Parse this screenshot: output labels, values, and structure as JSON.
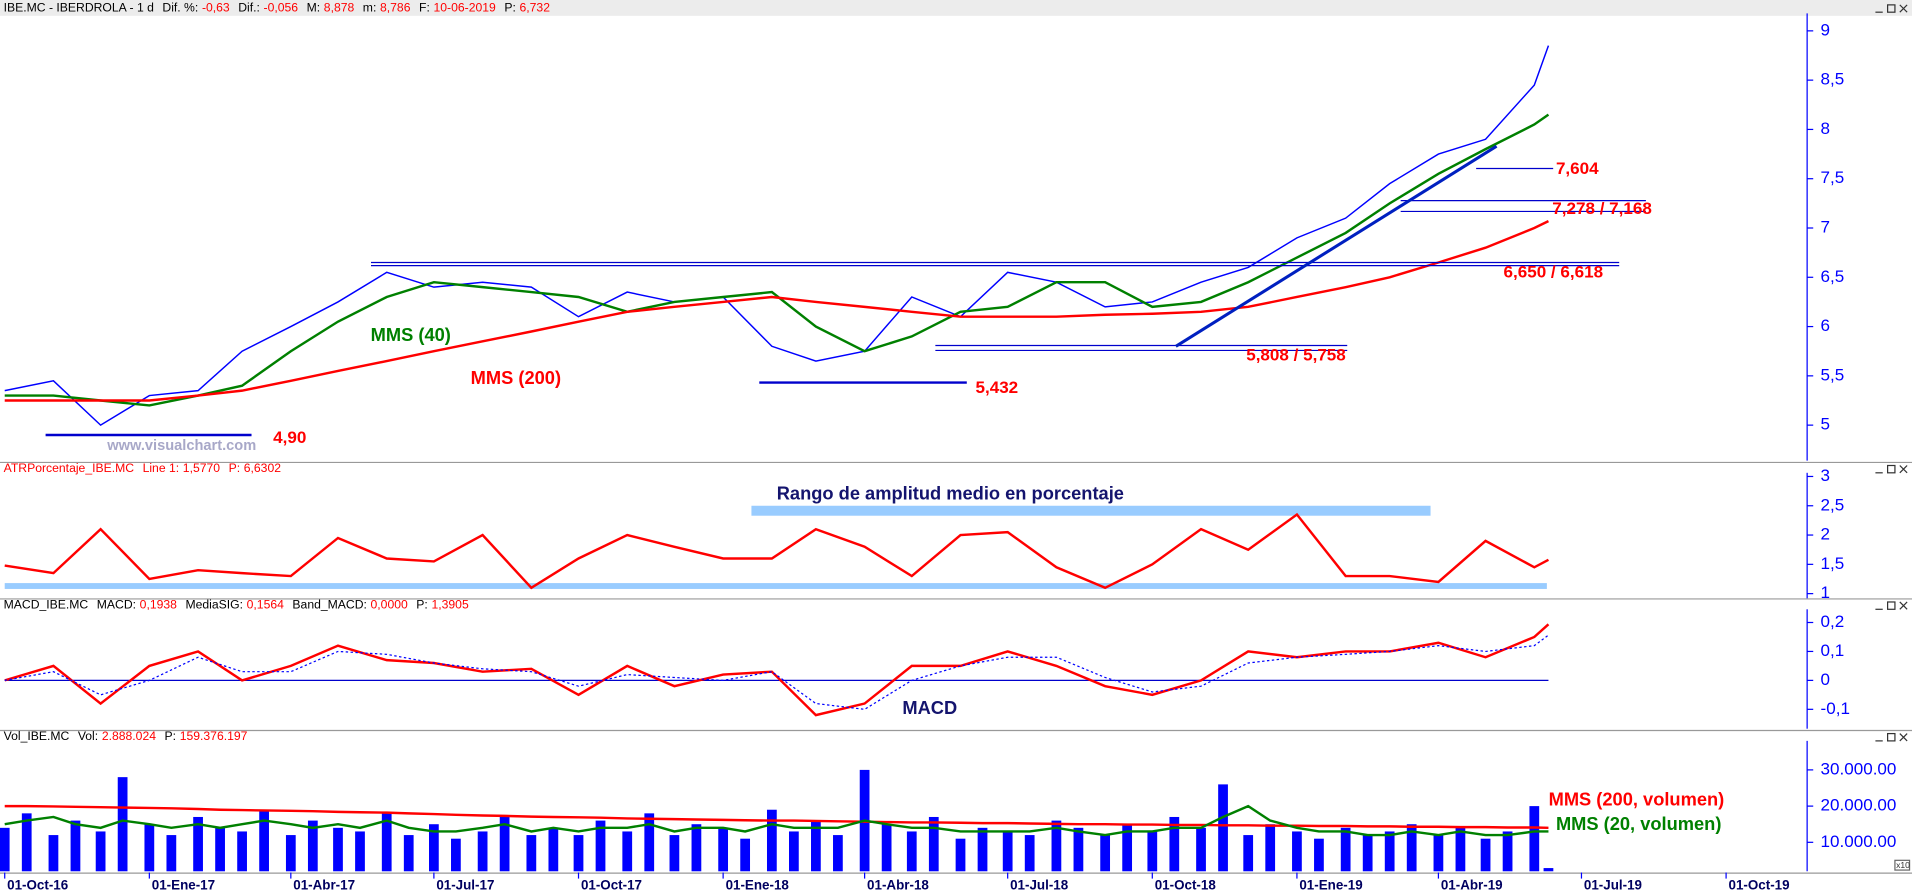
{
  "chart_data": [
    {
      "type": "line",
      "header": {
        "name": "IBE.MC - IBERDROLA -  1 d",
        "stats": [
          {
            "label": "Dif. %:",
            "value": "-0,63"
          },
          {
            "label": "Dif.:",
            "value": "-0,056"
          },
          {
            "label": "M:",
            "value": "8,878"
          },
          {
            "label": "m:",
            "value": "8,786"
          },
          {
            "label": "F:",
            "value": "10-06-2019"
          },
          {
            "label": "P:",
            "value": "6,732"
          }
        ]
      },
      "watermark": "www.visualchart.com",
      "x": [
        "2016-10-01",
        "2016-11-01",
        "2016-12-01",
        "2017-01-01",
        "2017-02-01",
        "2017-03-01",
        "2017-04-01",
        "2017-05-01",
        "2017-06-01",
        "2017-07-01",
        "2017-08-01",
        "2017-09-01",
        "2017-10-01",
        "2017-11-01",
        "2017-12-01",
        "2018-01-01",
        "2018-02-01",
        "2018-03-01",
        "2018-04-01",
        "2018-05-01",
        "2018-06-01",
        "2018-07-01",
        "2018-08-01",
        "2018-09-01",
        "2018-10-01",
        "2018-11-01",
        "2018-12-01",
        "2019-01-01",
        "2019-02-01",
        "2019-03-01",
        "2019-04-01",
        "2019-05-01",
        "2019-06-01",
        "2019-06-10"
      ],
      "xlim": [
        "2016-09-28",
        "2019-11-20"
      ],
      "ylim": [
        4.64,
        9.14
      ],
      "yticks": [
        5,
        {
          "value": 5.5,
          "label": "5,5"
        },
        6,
        {
          "value": 6.5,
          "label": "6,5"
        },
        7,
        {
          "value": 7.5,
          "label": "7,5"
        },
        8,
        {
          "value": 8.5,
          "label": "8,5"
        },
        9
      ],
      "series": [
        {
          "color": "#0000ff",
          "values": [
            5.35,
            5.45,
            5.0,
            5.3,
            5.35,
            5.75,
            6.0,
            6.25,
            6.55,
            6.4,
            6.45,
            6.4,
            6.1,
            6.35,
            6.25,
            6.3,
            5.8,
            5.65,
            5.75,
            6.3,
            6.1,
            6.55,
            6.45,
            6.2,
            6.25,
            6.45,
            6.6,
            6.9,
            7.1,
            7.45,
            7.75,
            7.9,
            8.45,
            8.85
          ]
        },
        {
          "name": "MMS (40)",
          "color": "#008000",
          "values": [
            5.3,
            5.3,
            5.25,
            5.2,
            5.3,
            5.4,
            5.75,
            6.05,
            6.3,
            6.45,
            6.4,
            6.35,
            6.3,
            6.15,
            6.25,
            6.3,
            6.35,
            6.0,
            5.75,
            5.9,
            6.15,
            6.2,
            6.45,
            6.45,
            6.2,
            6.25,
            6.45,
            6.7,
            6.95,
            7.25,
            7.55,
            7.8,
            8.05,
            8.15
          ]
        },
        {
          "name": "MMS (200)",
          "color": "#ff0000",
          "values": [
            5.25,
            5.25,
            5.25,
            5.25,
            5.3,
            5.35,
            5.45,
            5.55,
            5.65,
            5.75,
            5.85,
            5.95,
            6.05,
            6.15,
            6.2,
            6.25,
            6.3,
            6.25,
            6.2,
            6.15,
            6.1,
            6.1,
            6.1,
            6.12,
            6.13,
            6.15,
            6.2,
            6.3,
            6.4,
            6.5,
            6.65,
            6.8,
            7.0,
            7.07
          ]
        }
      ],
      "levels": [
        {
          "values": [
            4.9
          ],
          "label": "4,90",
          "from": "2016-10-27",
          "to": "2017-03-07"
        },
        {
          "values": [
            5.432
          ],
          "label": "5,432",
          "from": "2018-01-24",
          "to": "2018-06-05"
        },
        {
          "values": [
            5.808,
            5.758
          ],
          "label": "5,808 / 5,758",
          "from": "2018-05-16",
          "to": "2019-02-02"
        },
        {
          "values": [
            6.65,
            6.618
          ],
          "label": "6,650 / 6,618",
          "from": "2017-05-22",
          "to": "2019-07-25"
        },
        {
          "values": [
            7.278,
            7.168
          ],
          "label": "7,278 / 7,168",
          "from": "2019-03-08",
          "to": "2019-08-11"
        },
        {
          "values": [
            7.604
          ],
          "label": "7,604",
          "from": "2019-04-25",
          "to": "2019-06-13"
        }
      ],
      "level_color": "#0000cc",
      "trendline": {
        "x": [
          "2018-10-16",
          "2019-05-08"
        ],
        "values": [
          5.8,
          7.83
        ],
        "color": "#0020c0"
      }
    },
    {
      "type": "line",
      "header": {
        "name": "ATRPorcentaje_IBE.MC",
        "stats": [
          {
            "label": "Line 1:",
            "value": "1,5770"
          },
          {
            "label": "P:",
            "value": "6,6302"
          }
        ]
      },
      "annotations": [
        "Rango de amplitud medio en porcentaje"
      ],
      "x": [
        "2016-10-01",
        "2016-11-01",
        "2016-12-01",
        "2017-01-01",
        "2017-02-01",
        "2017-03-01",
        "2017-04-01",
        "2017-05-01",
        "2017-06-01",
        "2017-07-01",
        "2017-08-01",
        "2017-09-01",
        "2017-10-01",
        "2017-11-01",
        "2017-12-01",
        "2018-01-01",
        "2018-02-01",
        "2018-03-01",
        "2018-04-01",
        "2018-05-01",
        "2018-06-01",
        "2018-07-01",
        "2018-08-01",
        "2018-09-01",
        "2018-10-01",
        "2018-11-01",
        "2018-12-01",
        "2019-01-01",
        "2019-02-01",
        "2019-03-01",
        "2019-04-01",
        "2019-05-01",
        "2019-06-01",
        "2019-06-10"
      ],
      "xlim": [
        "2016-09-28",
        "2019-11-20"
      ],
      "ylim": [
        0.92,
        3.0
      ],
      "yticks": [
        1,
        {
          "value": 1.5,
          "label": "1,5"
        },
        2,
        {
          "value": 2.5,
          "label": "2,5"
        },
        3
      ],
      "bands": [
        {
          "from": "2016-10-01",
          "to": "2019-06-09",
          "range": [
            1.08,
            1.18
          ],
          "color": "#99ccff"
        },
        {
          "from": "2018-01-19",
          "to": "2019-03-27",
          "range": [
            2.33,
            2.5
          ],
          "color": "#99ccff"
        }
      ],
      "series": [
        {
          "color": "#ff0000",
          "values": [
            1.48,
            1.35,
            2.1,
            1.25,
            1.4,
            1.35,
            1.3,
            1.95,
            1.6,
            1.55,
            2.0,
            1.1,
            1.6,
            2.0,
            1.8,
            1.6,
            1.6,
            2.1,
            1.8,
            1.3,
            2.0,
            2.05,
            1.45,
            1.1,
            1.5,
            2.1,
            1.75,
            2.35,
            1.3,
            1.3,
            1.2,
            1.9,
            1.45,
            1.577
          ]
        }
      ]
    },
    {
      "type": "line",
      "header": {
        "name": "MACD_IBE.MC",
        "stats": [
          {
            "label": "MACD:",
            "value": "0,1938"
          },
          {
            "label": "MediaSIG:",
            "value": "0,1564"
          },
          {
            "label": "Band_MACD:",
            "value": "0,0000"
          },
          {
            "label": "P:",
            "value": "1,3905"
          }
        ]
      },
      "annotations": [
        "MACD"
      ],
      "x": [
        "2016-10-01",
        "2016-11-01",
        "2016-12-01",
        "2017-01-01",
        "2017-02-01",
        "2017-03-01",
        "2017-04-01",
        "2017-05-01",
        "2017-06-01",
        "2017-07-01",
        "2017-08-01",
        "2017-09-01",
        "2017-10-01",
        "2017-11-01",
        "2017-12-01",
        "2018-01-01",
        "2018-02-01",
        "2018-03-01",
        "2018-04-01",
        "2018-05-01",
        "2018-06-01",
        "2018-07-01",
        "2018-08-01",
        "2018-09-01",
        "2018-10-01",
        "2018-11-01",
        "2018-12-01",
        "2019-01-01",
        "2019-02-01",
        "2019-03-01",
        "2019-04-01",
        "2019-05-01",
        "2019-06-01",
        "2019-06-10"
      ],
      "xlim": [
        "2016-09-28",
        "2019-11-20"
      ],
      "ylim": [
        -0.167,
        0.233
      ],
      "yticks": [
        {
          "value": -0.1,
          "label": "-0,1"
        },
        0,
        {
          "value": 0.1,
          "label": "0,1"
        },
        {
          "value": 0.2,
          "label": "0,2"
        }
      ],
      "reference_line": {
        "value": 0,
        "color": "#0000cc"
      },
      "series": [
        {
          "color": "#ff0000",
          "values": [
            0.0,
            0.05,
            -0.08,
            0.05,
            0.1,
            0.0,
            0.05,
            0.12,
            0.07,
            0.06,
            0.03,
            0.04,
            -0.05,
            0.05,
            -0.02,
            0.02,
            0.03,
            -0.12,
            -0.08,
            0.05,
            0.05,
            0.1,
            0.05,
            -0.02,
            -0.05,
            0.0,
            0.1,
            0.08,
            0.1,
            0.1,
            0.13,
            0.08,
            0.15,
            0.1938
          ]
        },
        {
          "color": "#0000ff",
          "dash": "dotted",
          "values": [
            0.0,
            0.03,
            -0.05,
            0.0,
            0.08,
            0.03,
            0.03,
            0.1,
            0.09,
            0.06,
            0.04,
            0.03,
            -0.02,
            0.02,
            0.01,
            0.0,
            0.03,
            -0.08,
            -0.1,
            0.0,
            0.05,
            0.08,
            0.08,
            0.01,
            -0.04,
            -0.02,
            0.06,
            0.08,
            0.09,
            0.1,
            0.12,
            0.1,
            0.12,
            0.1564
          ]
        }
      ]
    },
    {
      "type": "bar",
      "header": {
        "name": "Vol_IBE.MC",
        "stats": [
          {
            "label": "Vol:",
            "value": "2.888.024"
          },
          {
            "label": "P:",
            "value": "159.376.197"
          }
        ]
      },
      "scale_note": "x10",
      "x": [
        "2016-10-01",
        "2016-10-15",
        "2016-11-01",
        "2016-11-15",
        "2016-12-01",
        "2016-12-15",
        "2017-01-01",
        "2017-01-15",
        "2017-02-01",
        "2017-02-15",
        "2017-03-01",
        "2017-03-15",
        "2017-04-01",
        "2017-04-15",
        "2017-05-01",
        "2017-05-15",
        "2017-06-01",
        "2017-06-15",
        "2017-07-01",
        "2017-07-15",
        "2017-08-01",
        "2017-08-15",
        "2017-09-01",
        "2017-09-15",
        "2017-10-01",
        "2017-10-15",
        "2017-11-01",
        "2017-11-15",
        "2017-12-01",
        "2017-12-15",
        "2018-01-01",
        "2018-01-15",
        "2018-02-01",
        "2018-02-15",
        "2018-03-01",
        "2018-03-15",
        "2018-04-01",
        "2018-04-15",
        "2018-05-01",
        "2018-05-15",
        "2018-06-01",
        "2018-06-15",
        "2018-07-01",
        "2018-07-15",
        "2018-08-01",
        "2018-08-15",
        "2018-09-01",
        "2018-09-15",
        "2018-10-01",
        "2018-10-15",
        "2018-11-01",
        "2018-11-15",
        "2018-12-01",
        "2018-12-15",
        "2019-01-01",
        "2019-01-15",
        "2019-02-01",
        "2019-02-15",
        "2019-03-01",
        "2019-03-15",
        "2019-04-01",
        "2019-04-15",
        "2019-05-01",
        "2019-05-15",
        "2019-06-01",
        "2019-06-10"
      ],
      "xlim": [
        "2016-09-28",
        "2019-11-20"
      ],
      "xticks": [
        {
          "value": "2016-10-01",
          "label": "01-Oct-16"
        },
        {
          "value": "2017-01-01",
          "label": "01-Ene-17"
        },
        {
          "value": "2017-04-01",
          "label": "01-Abr-17"
        },
        {
          "value": "2017-07-01",
          "label": "01-Jul-17"
        },
        {
          "value": "2017-10-01",
          "label": "01-Oct-17"
        },
        {
          "value": "2018-01-01",
          "label": "01-Ene-18"
        },
        {
          "value": "2018-04-01",
          "label": "01-Abr-18"
        },
        {
          "value": "2018-07-01",
          "label": "01-Jul-18"
        },
        {
          "value": "2018-10-01",
          "label": "01-Oct-18"
        },
        {
          "value": "2019-01-01",
          "label": "01-Ene-19"
        },
        {
          "value": "2019-04-01",
          "label": "01-Abr-19"
        },
        {
          "value": "2019-07-01",
          "label": "01-Jul-19"
        },
        {
          "value": "2019-10-01",
          "label": "01-Oct-19"
        }
      ],
      "ylim": [
        2000000,
        37000000
      ],
      "yticks": [
        {
          "value": 10000000,
          "label": "10.000.00"
        },
        {
          "value": 20000000,
          "label": "20.000.00"
        },
        {
          "value": 30000000,
          "label": "30.000.00"
        }
      ],
      "series": [
        {
          "type": "bar",
          "color": "#0000ff",
          "values": [
            14000000,
            18000000,
            12000000,
            16000000,
            13000000,
            28000000,
            15000000,
            12000000,
            17000000,
            14000000,
            13000000,
            19000000,
            12000000,
            16000000,
            14000000,
            13000000,
            18000000,
            12000000,
            15000000,
            11000000,
            13000000,
            17000000,
            12000000,
            14000000,
            12000000,
            16000000,
            13000000,
            18000000,
            12000000,
            15000000,
            14000000,
            11000000,
            19000000,
            13000000,
            16000000,
            12000000,
            30000000,
            15000000,
            13000000,
            17000000,
            11000000,
            14000000,
            13000000,
            12000000,
            16000000,
            14000000,
            12000000,
            15000000,
            13000000,
            17000000,
            14000000,
            26000000,
            12000000,
            15000000,
            13000000,
            11000000,
            14000000,
            12000000,
            13000000,
            15000000,
            12000000,
            14000000,
            11000000,
            13000000,
            20000000,
            2888024
          ]
        },
        {
          "type": "line",
          "name": "MMS (200, volumen)",
          "color": "#ff0000",
          "values": [
            20000000,
            20000000,
            19900000,
            19800000,
            19700000,
            19600000,
            19500000,
            19400000,
            19200000,
            19000000,
            18900000,
            18800000,
            18700000,
            18600000,
            18400000,
            18300000,
            18200000,
            18000000,
            17800000,
            17600000,
            17400000,
            17300000,
            17100000,
            17000000,
            16900000,
            16800000,
            16600000,
            16500000,
            16400000,
            16300000,
            16200000,
            16100000,
            16000000,
            16000000,
            15900000,
            15800000,
            15700000,
            15600000,
            15500000,
            15500000,
            15400000,
            15300000,
            15300000,
            15200000,
            15100000,
            15000000,
            15000000,
            14900000,
            14900000,
            14800000,
            14800000,
            14700000,
            14700000,
            14600000,
            14600000,
            14500000,
            14500000,
            14400000,
            14400000,
            14300000,
            14300000,
            14200000,
            14200000,
            14100000,
            14100000,
            14000000
          ]
        },
        {
          "type": "line",
          "name": "MMS (20, volumen)",
          "color": "#008000",
          "values": [
            15000000,
            16000000,
            17000000,
            15000000,
            14000000,
            16000000,
            15000000,
            14000000,
            15000000,
            14000000,
            15000000,
            16000000,
            15000000,
            14000000,
            15000000,
            14000000,
            16000000,
            14000000,
            13000000,
            13000000,
            14000000,
            15000000,
            13000000,
            14000000,
            13000000,
            14000000,
            14000000,
            15000000,
            13000000,
            14000000,
            14000000,
            13000000,
            15000000,
            14000000,
            14000000,
            14000000,
            16000000,
            15000000,
            14000000,
            14000000,
            13000000,
            13000000,
            13000000,
            13000000,
            14000000,
            13000000,
            12000000,
            13000000,
            13000000,
            14000000,
            14000000,
            17000000,
            20000000,
            16000000,
            14000000,
            13000000,
            13000000,
            12000000,
            12000000,
            13000000,
            12000000,
            13000000,
            12000000,
            12000000,
            13000000,
            13000000
          ]
        }
      ]
    }
  ]
}
